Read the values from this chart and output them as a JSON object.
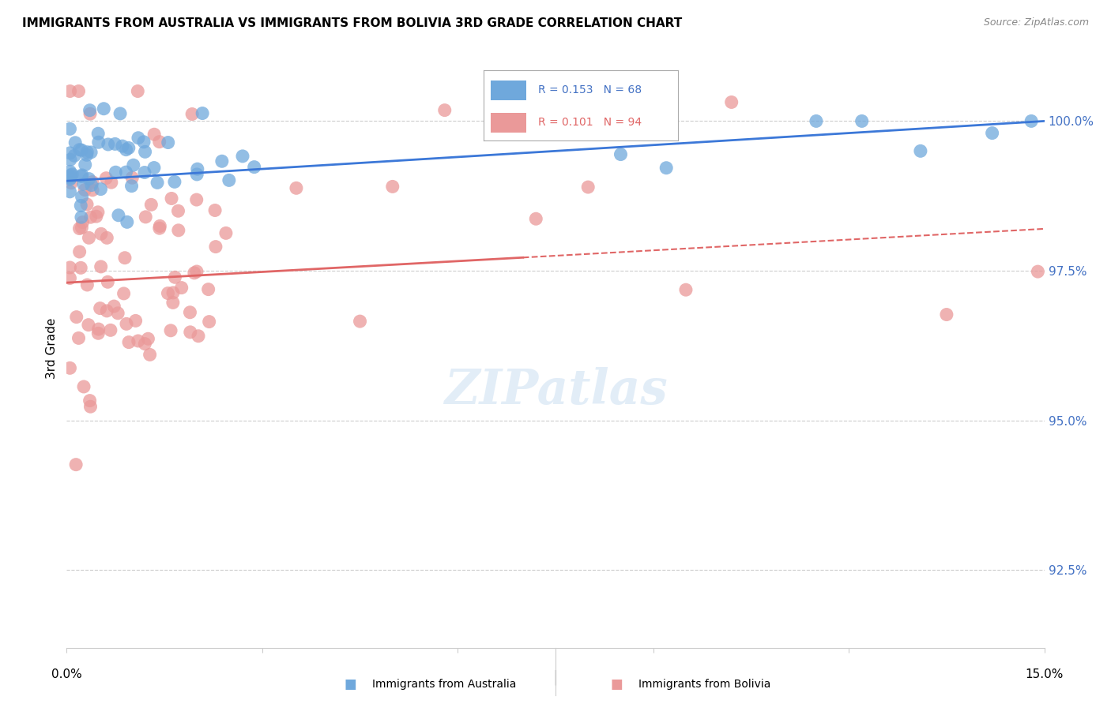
{
  "title": "IMMIGRANTS FROM AUSTRALIA VS IMMIGRANTS FROM BOLIVIA 3RD GRADE CORRELATION CHART",
  "source": "Source: ZipAtlas.com",
  "ylabel": "3rd Grade",
  "ytick_values": [
    100.0,
    97.5,
    95.0,
    92.5
  ],
  "xlim": [
    0.0,
    15.0
  ],
  "ylim": [
    91.2,
    101.2
  ],
  "color_australia": "#6fa8dc",
  "color_bolivia": "#ea9999",
  "color_australia_line": "#3c78d8",
  "color_bolivia_line": "#e06666",
  "background_color": "#ffffff",
  "seed_aus": 13,
  "seed_bol": 21,
  "aus_n": 68,
  "bol_n": 94,
  "legend_text_1": "R = 0.153   N = 68",
  "legend_text_2": "R = 0.101   N = 94",
  "watermark_color": "#cfe2f3",
  "grid_color": "#cccccc",
  "right_label_color": "#4472c4"
}
